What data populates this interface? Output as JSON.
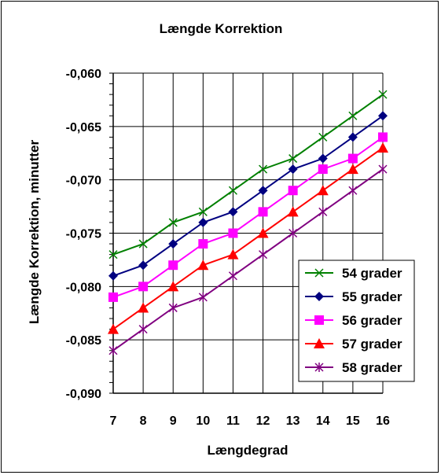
{
  "chart_data": {
    "type": "line",
    "title": "Længde Korrektion",
    "xlabel": "Længdegrad",
    "ylabel": "Længde Korrektion, minutter",
    "x": [
      7,
      8,
      9,
      10,
      11,
      12,
      13,
      14,
      15,
      16
    ],
    "x_tick_labels": [
      "7",
      "8",
      "9",
      "10",
      "11",
      "12",
      "13",
      "14",
      "15",
      "16"
    ],
    "ylim": [
      -0.09,
      -0.06
    ],
    "y_ticks": [
      -0.06,
      -0.065,
      -0.07,
      -0.075,
      -0.08,
      -0.085,
      -0.09
    ],
    "y_tick_labels": [
      "-0,060",
      "-0,065",
      "-0,070",
      "-0,075",
      "-0,080",
      "-0,085",
      "-0,090"
    ],
    "grid": true,
    "legend_position": "bottom-right",
    "series": [
      {
        "name": "54 grader",
        "color": "#008000",
        "marker": "x",
        "values": [
          -0.077,
          -0.076,
          -0.074,
          -0.073,
          -0.071,
          -0.069,
          -0.068,
          -0.066,
          -0.064,
          -0.062
        ]
      },
      {
        "name": "55 grader",
        "color": "#000080",
        "marker": "diamond",
        "values": [
          -0.079,
          -0.078,
          -0.076,
          -0.074,
          -0.073,
          -0.071,
          -0.069,
          -0.068,
          -0.066,
          -0.064
        ]
      },
      {
        "name": "56 grader",
        "color": "#ff00ff",
        "marker": "square",
        "values": [
          -0.081,
          -0.08,
          -0.078,
          -0.076,
          -0.075,
          -0.073,
          -0.071,
          -0.069,
          -0.068,
          -0.066
        ]
      },
      {
        "name": "57 grader",
        "color": "#ff0000",
        "marker": "triangle",
        "values": [
          -0.084,
          -0.082,
          -0.08,
          -0.078,
          -0.077,
          -0.075,
          -0.073,
          -0.071,
          -0.069,
          -0.067
        ]
      },
      {
        "name": "58 grader",
        "color": "#800080",
        "marker": "star",
        "values": [
          -0.086,
          -0.084,
          -0.082,
          -0.081,
          -0.079,
          -0.077,
          -0.075,
          -0.073,
          -0.071,
          -0.069
        ]
      }
    ]
  }
}
